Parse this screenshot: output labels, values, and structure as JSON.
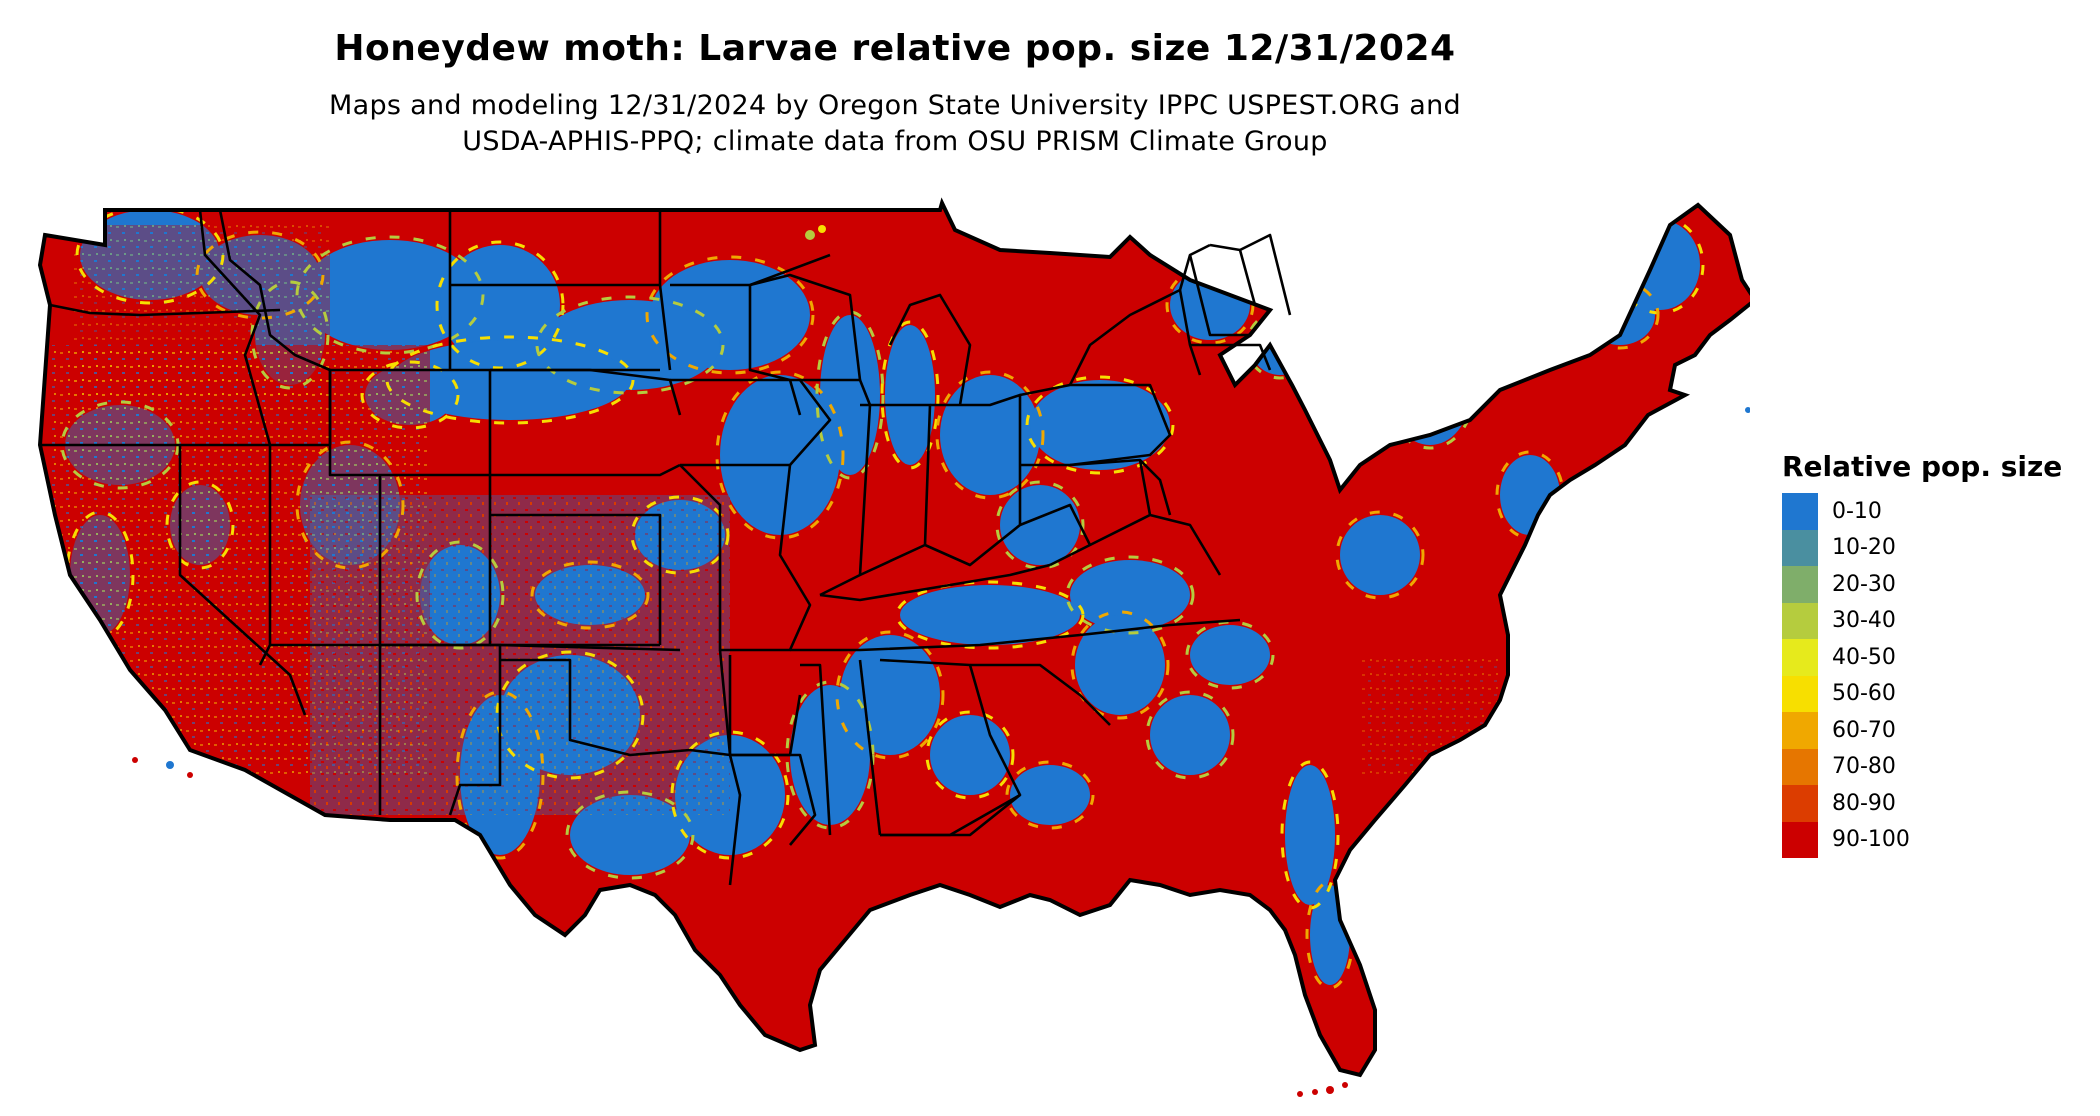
{
  "title": "Honeydew moth: Larvae relative pop. size 12/31/2024",
  "subtitle_line1": "Maps and modeling 12/31/2024 by Oregon State University IPPC USPEST.ORG and",
  "subtitle_line2": "USDA-APHIS-PPQ; climate data from OSU PRISM Climate Group",
  "legend": {
    "title": "Relative pop. size",
    "items": [
      {
        "label": "0-10",
        "color": "#1f77d0"
      },
      {
        "label": "10-20",
        "color": "#4a8fa0"
      },
      {
        "label": "20-30",
        "color": "#7fae6a"
      },
      {
        "label": "30-40",
        "color": "#b5cc3e"
      },
      {
        "label": "40-50",
        "color": "#e6ea1c"
      },
      {
        "label": "50-60",
        "color": "#f7df00"
      },
      {
        "label": "60-70",
        "color": "#f0a800"
      },
      {
        "label": "70-80",
        "color": "#e67600"
      },
      {
        "label": "80-90",
        "color": "#dc3d00"
      },
      {
        "label": "90-100",
        "color": "#cc0000"
      }
    ]
  },
  "map": {
    "region": "conterminous United States",
    "dominant_classes": [
      "0-10",
      "90-100"
    ],
    "base_color": "#cc0000",
    "low_color": "#1f77d0",
    "transition_colors": [
      "#f7df00",
      "#f0a800",
      "#b5cc3e"
    ],
    "border_color": "#000000"
  }
}
